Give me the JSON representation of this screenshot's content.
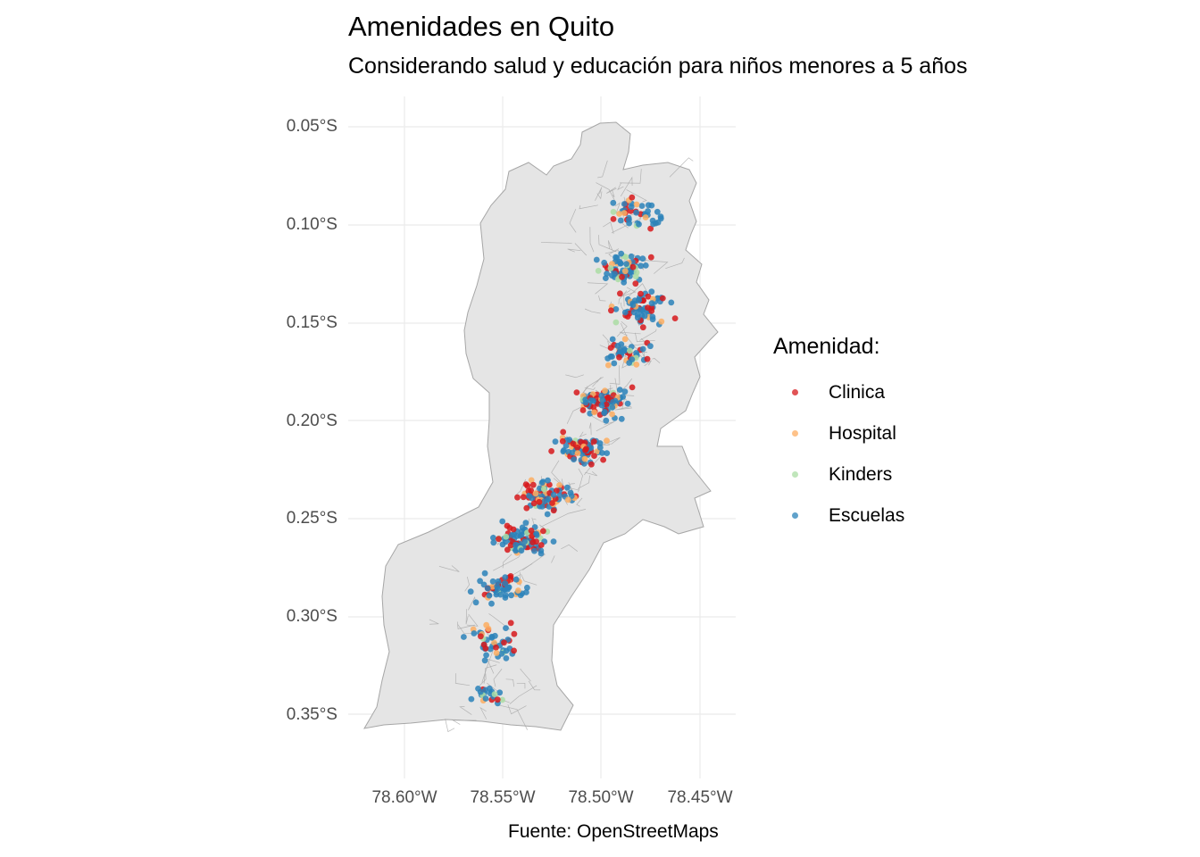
{
  "title": "Amenidades en Quito",
  "subtitle": "Considerando salud y educación para niños menores a 5 años",
  "caption": "Fuente: OpenStreetMaps",
  "legend": {
    "title": "Amenidad:",
    "items": [
      {
        "label": "Clinica",
        "color": "#d7191c"
      },
      {
        "label": "Hospital",
        "color": "#fdae61"
      },
      {
        "label": "Kinders",
        "color": "#abdda4"
      },
      {
        "label": "Escuelas",
        "color": "#2b83ba"
      }
    ]
  },
  "axes": {
    "y_ticks": [
      "0.05°S",
      "0.10°S",
      "0.15°S",
      "0.20°S",
      "0.25°S",
      "0.30°S",
      "0.35°S"
    ],
    "x_ticks": [
      "78.60°W",
      "78.55°W",
      "78.50°W",
      "78.45°W"
    ],
    "lat_range": [
      -0.375,
      -0.035
    ],
    "lon_range": [
      -78.62,
      -78.432
    ]
  },
  "map_colors": {
    "land_fill": "#e5e5e5",
    "boundary_stroke": "#a6a6a6",
    "grid": "#ebebeb"
  }
}
